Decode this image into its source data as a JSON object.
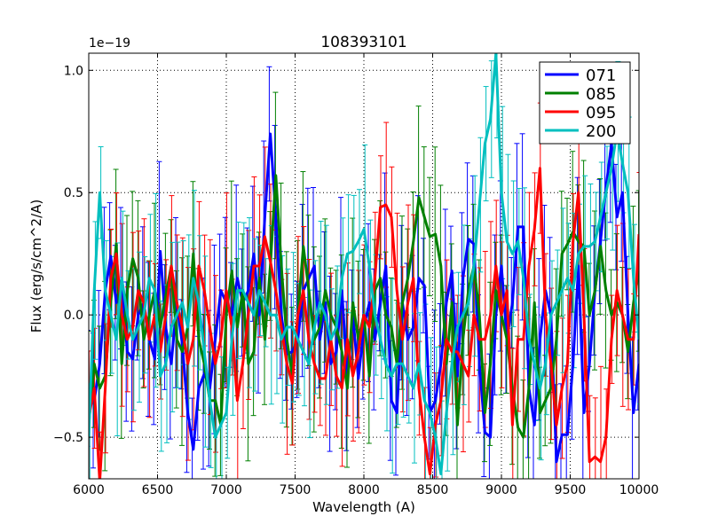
{
  "chart_data": {
    "type": "line",
    "title": "108393101",
    "xlabel": "Wavelength (A)",
    "ylabel": "Flux (erg/s/cm^2/A)",
    "y_offset_label": "1e−19",
    "xlim": [
      6000,
      10000
    ],
    "ylim": [
      -0.67,
      1.07
    ],
    "xticks": [
      6000,
      6500,
      7000,
      7500,
      8000,
      8500,
      9000,
      9500,
      10000
    ],
    "yticks": [
      -0.5,
      0.0,
      0.5,
      1.0
    ],
    "ytick_labels": [
      "−0.5",
      "0.0",
      "0.5",
      "1.0"
    ],
    "grid": true,
    "legend_position": "top-right",
    "x_start": 6000,
    "x_step": 40,
    "series": [
      {
        "name": "071",
        "color": "#0000ff",
        "values": [
          -0.3,
          -0.35,
          -0.2,
          0.1,
          0.24,
          0.05,
          0.15,
          -0.15,
          -0.18,
          0.0,
          0.05,
          -0.1,
          -0.18,
          0.26,
          -0.05,
          -0.2,
          0.05,
          -0.12,
          -0.4,
          -0.55,
          -0.3,
          -0.24,
          -0.3,
          -0.1,
          0.1,
          0.05,
          0.0,
          0.15,
          0.05,
          0.1,
          0.25,
          0.0,
          0.4,
          0.74,
          0.4,
          0.0,
          -0.16,
          -0.15,
          -0.1,
          0.1,
          0.15,
          0.2,
          -0.1,
          0.05,
          -0.2,
          -0.15,
          0.1,
          -0.25,
          0.0,
          -0.26,
          -0.05,
          0.05,
          -0.1,
          0.05,
          0.2,
          -0.35,
          -0.4,
          0.05,
          -0.1,
          -0.05,
          0.15,
          0.12,
          -0.4,
          -0.35,
          -0.2,
          0.05,
          0.18,
          -0.25,
          0.15,
          0.31,
          0.29,
          -0.2,
          -0.48,
          -0.5,
          0.0,
          0.2,
          -0.1,
          0.05,
          0.36,
          0.36,
          -0.3,
          -0.45,
          -0.1,
          0.1,
          0.0,
          -0.6,
          -0.49,
          -0.49,
          -0.2,
          0.2,
          -0.4,
          -0.2,
          0.1,
          0.3,
          0.52,
          0.7,
          0.4,
          0.5,
          0.0,
          -0.4,
          -0.2
        ]
      },
      {
        "name": "085",
        "color": "#008000",
        "values": [
          -0.45,
          -0.2,
          -0.3,
          -0.25,
          0.05,
          0.29,
          -0.2,
          0.1,
          0.23,
          0.15,
          -0.1,
          0.0,
          0.1,
          -0.05,
          0.08,
          0.2,
          -0.1,
          -0.15,
          -0.05,
          0.25,
          -0.1,
          -0.2,
          -0.35,
          -0.35,
          -0.45,
          0.0,
          0.18,
          -0.05,
          0.1,
          -0.2,
          -0.15,
          0.15,
          -0.1,
          0.2,
          0.57,
          0.2,
          -0.1,
          -0.25,
          0.0,
          0.28,
          0.1,
          -0.1,
          -0.05,
          0.1,
          0.0,
          -0.05,
          -0.15,
          -0.3,
          0.05,
          -0.1,
          0.0,
          -0.25,
          0.1,
          0.15,
          0.0,
          -0.05,
          -0.2,
          0.05,
          0.15,
          0.3,
          0.48,
          0.4,
          0.32,
          0.33,
          0.2,
          -0.2,
          0.05,
          -0.45,
          -0.1,
          0.1,
          0.2,
          0.0,
          -0.4,
          -0.2,
          0.1,
          0.0,
          -0.1,
          -0.3,
          -0.46,
          -0.5,
          -0.3,
          0.05,
          -0.4,
          -0.35,
          -0.3,
          -0.1,
          0.25,
          0.29,
          0.34,
          0.3,
          0.28,
          0.0,
          0.1,
          0.28,
          0.1,
          0.0,
          0.05,
          0.0,
          -0.15,
          0.05,
          0.18
        ]
      },
      {
        "name": "095",
        "color": "#ff0000",
        "values": [
          -0.42,
          -0.3,
          -0.68,
          -0.3,
          0.15,
          0.25,
          0.0,
          -0.1,
          -0.05,
          0.1,
          0.05,
          -0.1,
          0.0,
          -0.15,
          0.0,
          0.2,
          0.05,
          -0.05,
          -0.2,
          -0.1,
          0.2,
          0.1,
          -0.05,
          -0.2,
          -0.1,
          0.1,
          -0.05,
          -0.35,
          -0.2,
          0.0,
          0.2,
          0.2,
          0.32,
          0.22,
          0.1,
          -0.05,
          -0.2,
          -0.28,
          0.0,
          0.1,
          -0.1,
          -0.2,
          -0.26,
          -0.26,
          -0.1,
          -0.25,
          -0.3,
          -0.1,
          -0.25,
          -0.15,
          0.0,
          -0.05,
          0.15,
          0.44,
          0.45,
          0.4,
          0.1,
          -0.1,
          0.05,
          0.15,
          -0.3,
          -0.5,
          -0.65,
          -0.45,
          -0.35,
          -0.1,
          -0.15,
          -0.15,
          -0.2,
          -0.25,
          0.0,
          -0.1,
          -0.1,
          0.0,
          0.2,
          0.0,
          0.1,
          -0.45,
          -0.1,
          -0.1,
          0.2,
          0.35,
          0.6,
          0.0,
          -0.2,
          -0.45,
          -0.3,
          -0.2,
          0.3,
          0.5,
          0.0,
          -0.6,
          -0.58,
          -0.6,
          -0.5,
          -0.1,
          0.1,
          0.0,
          -0.1,
          -0.1,
          0.33
        ]
      },
      {
        "name": "200",
        "color": "#00bfbf",
        "values": [
          -0.5,
          0.1,
          0.5,
          0.1,
          0.0,
          -0.1,
          0.15,
          0.0,
          -0.1,
          -0.05,
          0.0,
          0.15,
          0.1,
          -0.25,
          -0.2,
          -0.05,
          0.0,
          0.05,
          -0.05,
          0.15,
          0.05,
          -0.15,
          -0.35,
          -0.5,
          -0.45,
          -0.4,
          -0.1,
          0.1,
          0.1,
          0.05,
          0.0,
          0.1,
          0.05,
          0.0,
          0.0,
          -0.1,
          -0.05,
          -0.05,
          -0.1,
          -0.15,
          -0.2,
          -0.05,
          0.05,
          0.0,
          -0.1,
          -0.05,
          0.15,
          0.25,
          0.26,
          0.3,
          0.35,
          0.2,
          0.0,
          -0.1,
          -0.2,
          -0.25,
          -0.2,
          -0.2,
          -0.25,
          -0.3,
          -0.2,
          -0.35,
          -0.4,
          -0.5,
          -0.65,
          -0.4,
          -0.2,
          -0.05,
          0.0,
          0.05,
          0.2,
          0.45,
          0.7,
          0.8,
          1.07,
          0.5,
          0.3,
          0.25,
          0.3,
          0.15,
          -0.1,
          -0.2,
          -0.3,
          -0.2,
          0.0,
          0.05,
          0.1,
          0.15,
          0.1,
          0.25,
          0.28,
          0.28,
          0.3,
          0.4,
          0.5,
          0.6,
          0.75,
          0.62,
          0.5,
          0.15,
          -0.1
        ]
      }
    ]
  }
}
